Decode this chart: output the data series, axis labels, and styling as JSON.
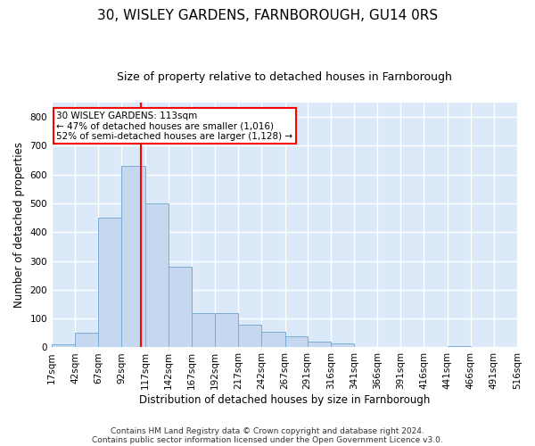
{
  "title": "30, WISLEY GARDENS, FARNBOROUGH, GU14 0RS",
  "subtitle": "Size of property relative to detached houses in Farnborough",
  "xlabel": "Distribution of detached houses by size in Farnborough",
  "ylabel": "Number of detached properties",
  "footnote1": "Contains HM Land Registry data © Crown copyright and database right 2024.",
  "footnote2": "Contains public sector information licensed under the Open Government Licence v3.0.",
  "bar_edges": [
    17,
    42,
    67,
    92,
    117,
    142,
    167,
    192,
    217,
    242,
    267,
    291,
    316,
    341,
    366,
    391,
    416,
    441,
    466,
    491,
    516
  ],
  "bar_heights": [
    10,
    50,
    450,
    630,
    500,
    280,
    120,
    120,
    80,
    55,
    40,
    20,
    15,
    0,
    0,
    0,
    0,
    5,
    0,
    0,
    0
  ],
  "bar_color": "#c5d8f0",
  "bar_edge_color": "#7aacd6",
  "vline_x": 113,
  "vline_color": "red",
  "annotation_text": "30 WISLEY GARDENS: 113sqm\n← 47% of detached houses are smaller (1,016)\n52% of semi-detached houses are larger (1,128) →",
  "annotation_box_color": "red",
  "ylim": [
    0,
    850
  ],
  "yticks": [
    0,
    100,
    200,
    300,
    400,
    500,
    600,
    700,
    800
  ],
  "bg_color": "#dce9f8",
  "grid_color": "white",
  "title_fontsize": 11,
  "subtitle_fontsize": 9,
  "tick_fontsize": 7.5,
  "label_fontsize": 8.5,
  "footnote_fontsize": 6.5
}
